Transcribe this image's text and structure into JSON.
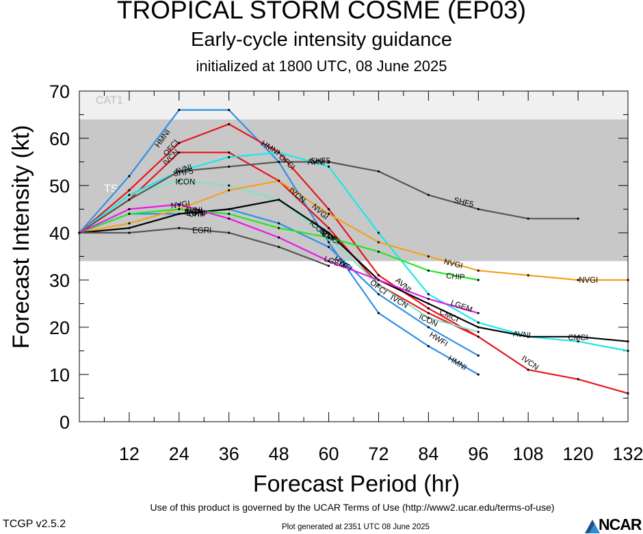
{
  "header": {
    "title": "TROPICAL STORM COSME (EP03)",
    "subtitle": "Early-cycle intensity guidance",
    "initialized": "initialized at 1800 UTC, 08 June 2025"
  },
  "footer": {
    "terms": "Use of this product is governed by the UCAR Terms of Use (http://www2.ucar.edu/terms-of-use)",
    "version": "TCGP v2.5.2",
    "generated": "Plot generated at 2351 UTC   08 June 2025",
    "logo_text": "NCAR"
  },
  "chart_data": {
    "type": "line",
    "xlabel": "Forecast Period (hr)",
    "ylabel": "Forecast Intensity (kt)",
    "xlim": [
      0,
      132
    ],
    "ylim": [
      0,
      70
    ],
    "x_ticks": [
      12,
      24,
      36,
      48,
      60,
      72,
      84,
      96,
      108,
      120,
      132
    ],
    "y_ticks": [
      0,
      10,
      20,
      30,
      40,
      50,
      60,
      70
    ],
    "bands": [
      {
        "label": "TS",
        "from": 34,
        "to": 64,
        "color": "#c8c8c8"
      },
      {
        "label": "CAT1",
        "from": 64,
        "to": 83,
        "color": "#f0f0f0"
      }
    ],
    "series": [
      {
        "name": "HMNI",
        "color": "#2f8fe8",
        "x": [
          0,
          12,
          24,
          36,
          48,
          60,
          72,
          84,
          96
        ],
        "y": [
          40,
          52,
          66,
          66,
          55,
          38,
          23,
          16,
          10
        ]
      },
      {
        "name": "HWFI",
        "color": "#2f8fe8",
        "x": [
          0,
          12,
          24,
          36,
          48,
          60,
          72,
          84,
          96
        ],
        "y": [
          40,
          44,
          44,
          45,
          42,
          37,
          27,
          20,
          14
        ]
      },
      {
        "name": "OFCI",
        "color": "#e8141b",
        "x": [
          0,
          12,
          24,
          36,
          48,
          60,
          72,
          84,
          96
        ],
        "y": [
          40,
          49,
          59,
          63,
          57,
          45,
          31,
          24,
          18
        ]
      },
      {
        "name": "IVCN",
        "color": "#e8141b",
        "x": [
          0,
          12,
          24,
          36,
          48,
          60,
          72,
          84,
          96,
          108,
          120,
          132
        ],
        "y": [
          40,
          47,
          57,
          57,
          51,
          41,
          29,
          23,
          18,
          11,
          9,
          6
        ]
      },
      {
        "name": "ICON",
        "color": "#80e3c4",
        "x": [
          0,
          12,
          24,
          36,
          48,
          60,
          72,
          84,
          96
        ],
        "y": [
          40,
          48,
          51,
          50,
          47,
          39,
          29,
          22,
          19
        ]
      },
      {
        "name": "AVNI",
        "color": "#19e8e8",
        "x": [
          0,
          12,
          24,
          36,
          48,
          60,
          72,
          84,
          96,
          108,
          120,
          132
        ],
        "y": [
          40,
          48,
          53,
          56,
          57,
          54,
          40,
          27,
          21,
          18,
          17,
          15
        ]
      },
      {
        "name": "SHF5",
        "color": "#555555",
        "x": [
          0,
          12,
          24,
          36,
          48,
          60,
          72,
          84,
          96,
          108,
          120
        ],
        "y": [
          40,
          47,
          53,
          54,
          55,
          55,
          53,
          48,
          45,
          43,
          43
        ]
      },
      {
        "name": "NVGI",
        "color": "#f5a01a",
        "x": [
          0,
          12,
          24,
          36,
          48,
          60,
          72,
          84,
          96,
          108,
          120,
          132
        ],
        "y": [
          40,
          42,
          45,
          49,
          51,
          44,
          38,
          35,
          32,
          31,
          30,
          30
        ]
      },
      {
        "name": "CMCI",
        "color": "#000000",
        "x": [
          0,
          12,
          24,
          36,
          48,
          60,
          72,
          84,
          96,
          108,
          120,
          132
        ],
        "y": [
          40,
          41,
          44,
          45,
          47,
          40,
          30,
          25,
          20,
          18,
          18,
          17
        ]
      },
      {
        "name": "CHIP",
        "color": "#22e822",
        "x": [
          0,
          12,
          24,
          36,
          48,
          60,
          72,
          84,
          96
        ],
        "y": [
          40,
          44,
          45,
          44,
          41,
          39,
          36,
          32,
          30
        ]
      },
      {
        "name": "LGEM",
        "color": "#e818e8",
        "x": [
          0,
          12,
          24,
          36,
          48,
          60,
          72,
          84,
          96
        ],
        "y": [
          40,
          45,
          46,
          43,
          39,
          34,
          30,
          26,
          23
        ]
      },
      {
        "name": "EGRI",
        "color": "#555555",
        "x": [
          0,
          12,
          24,
          36,
          48,
          60
        ],
        "y": [
          40,
          40,
          41,
          40,
          37,
          33
        ]
      }
    ],
    "line_labels": [
      {
        "text": "HMNI",
        "x": 20,
        "y": 60,
        "angle": -54
      },
      {
        "text": "OFCI",
        "x": 22,
        "y": 58,
        "angle": -50
      },
      {
        "text": "IVCN",
        "x": 22,
        "y": 56,
        "angle": -45
      },
      {
        "text": "AVNI",
        "x": 25,
        "y": 53.5,
        "angle": -18
      },
      {
        "text": "SHF5",
        "x": 25,
        "y": 52.8,
        "angle": -8
      },
      {
        "text": "ICON",
        "x": 25.5,
        "y": 50.8,
        "angle": 0
      },
      {
        "text": "NVGI",
        "x": 24.3,
        "y": 46,
        "angle": -8
      },
      {
        "text": "AVNI",
        "x": 27.5,
        "y": 44.8,
        "angle": 0
      },
      {
        "text": "IVCN",
        "x": 27.5,
        "y": 44.4,
        "angle": 0
      },
      {
        "text": "EGRI",
        "x": 28,
        "y": 44.2,
        "angle": 0
      },
      {
        "text": "CHIP",
        "x": 28.5,
        "y": 44.0,
        "angle": 0
      },
      {
        "text": "EGRI",
        "x": 29.5,
        "y": 40.5,
        "angle": 0
      },
      {
        "text": "HMNI",
        "x": 46,
        "y": 58,
        "angle": 32
      },
      {
        "text": "OFCI",
        "x": 50,
        "y": 55,
        "angle": 42
      },
      {
        "text": "AVNI",
        "x": 57,
        "y": 55,
        "angle": 0
      },
      {
        "text": "SHF5",
        "x": 58,
        "y": 55.2,
        "angle": 0
      },
      {
        "text": "IVCN",
        "x": 52.5,
        "y": 48,
        "angle": 40
      },
      {
        "text": "NVGI",
        "x": 58,
        "y": 44.5,
        "angle": 42
      },
      {
        "text": "ICON",
        "x": 57.5,
        "y": 41,
        "angle": 42
      },
      {
        "text": "SHIP",
        "x": 60,
        "y": 39.5,
        "angle": 35
      },
      {
        "text": "CMCI",
        "x": 60.5,
        "y": 39,
        "angle": 30
      },
      {
        "text": "LGEM",
        "x": 61.5,
        "y": 33.8,
        "angle": 20
      },
      {
        "text": "HWFI",
        "x": 63.5,
        "y": 33.5,
        "angle": 35
      },
      {
        "text": "OFCI",
        "x": 72,
        "y": 28.5,
        "angle": 38
      },
      {
        "text": "AVNI",
        "x": 78,
        "y": 29,
        "angle": 40
      },
      {
        "text": "IVCN",
        "x": 77,
        "y": 25.5,
        "angle": 30
      },
      {
        "text": "SHF5",
        "x": 92.5,
        "y": 46.5,
        "angle": 14
      },
      {
        "text": "NVGI",
        "x": 90,
        "y": 33.5,
        "angle": 14
      },
      {
        "text": "CHIP",
        "x": 90.5,
        "y": 30.8,
        "angle": 5
      },
      {
        "text": "LGEM",
        "x": 92,
        "y": 24.5,
        "angle": 20
      },
      {
        "text": "CMCI",
        "x": 89,
        "y": 22.5,
        "angle": 25
      },
      {
        "text": "ICON",
        "x": 84,
        "y": 21.5,
        "angle": 25
      },
      {
        "text": "HWFI",
        "x": 86.5,
        "y": 17.5,
        "angle": 32
      },
      {
        "text": "HMNI",
        "x": 91,
        "y": 12.5,
        "angle": 32
      },
      {
        "text": "AVNI",
        "x": 106.5,
        "y": 18.5,
        "angle": 5
      },
      {
        "text": "CMCI",
        "x": 120,
        "y": 17.8,
        "angle": 0
      },
      {
        "text": "IVCN",
        "x": 108.5,
        "y": 12.5,
        "angle": 35
      },
      {
        "text": "NVGI",
        "x": 122.5,
        "y": 30,
        "angle": 0
      }
    ]
  }
}
